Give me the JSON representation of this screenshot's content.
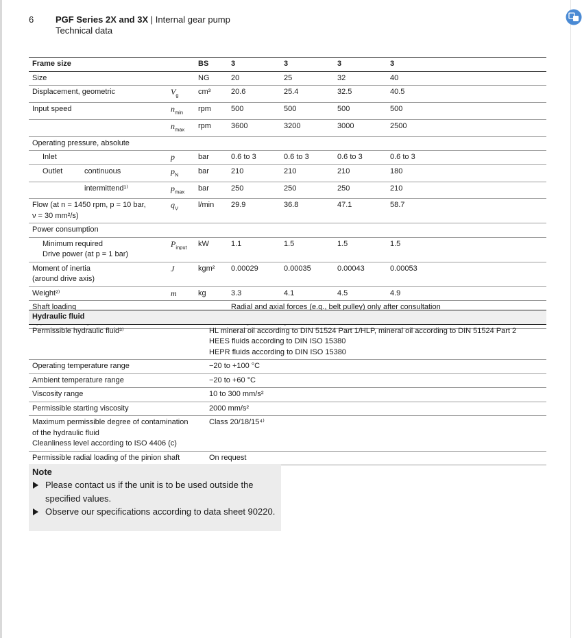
{
  "header": {
    "page_number": "6",
    "title": "PGF Series 2X and 3X",
    "title_suffix": "| Internal gear pump",
    "subtitle": "Technical data"
  },
  "technical_table": {
    "header": {
      "label": "Frame size",
      "unit": "BS",
      "values": [
        "3",
        "3",
        "3",
        "3"
      ]
    },
    "rows": [
      {
        "label": [
          "Size"
        ],
        "unit": "NG",
        "values": [
          "20",
          "25",
          "32",
          "40"
        ]
      },
      {
        "label": [
          "Displacement, geometric"
        ],
        "symbol": {
          "main": "V",
          "sub": "g"
        },
        "unit": "cm³",
        "values": [
          "20.6",
          "25.4",
          "32.5",
          "40.5"
        ]
      },
      {
        "label": [
          "Input speed"
        ],
        "symbol": {
          "main": "n",
          "sub": "min"
        },
        "unit": "rpm",
        "values": [
          "500",
          "500",
          "500",
          "500"
        ]
      },
      {
        "symbol": {
          "main": "n",
          "sub": "max"
        },
        "unit": "rpm",
        "values": [
          "3600",
          "3200",
          "3000",
          "2500"
        ]
      },
      {
        "label": [
          "Operating pressure, absolute"
        ]
      },
      {
        "label": [
          "Inlet"
        ],
        "symbol": {
          "main": "p"
        },
        "unit": "bar",
        "values": [
          "0.6 to 3",
          "0.6 to 3",
          "0.6 to 3",
          "0.6 to 3"
        ]
      },
      {
        "label": [
          "Outlet"
        ],
        "sublabel": "continuous",
        "symbol": {
          "main": "p",
          "sub": "N"
        },
        "unit": "bar",
        "values": [
          "210",
          "210",
          "210",
          "180"
        ]
      },
      {
        "sublabel": "intermittend¹⁾",
        "symbol": {
          "main": "p",
          "sub": "max"
        },
        "unit": "bar",
        "values": [
          "250",
          "250",
          "250",
          "210"
        ]
      },
      {
        "label": [
          "Flow (at n = 1450 rpm, p = 10 bar,",
          "ν = 30 mm²/s)"
        ],
        "symbol": {
          "main": "q",
          "sub": "V"
        },
        "unit": "l/min",
        "values": [
          "29.9",
          "36.8",
          "47.1",
          "58.7"
        ]
      },
      {
        "label": [
          "Power consumption"
        ]
      },
      {
        "label": [
          "Minimum required",
          "Drive power (at p = 1 bar)"
        ],
        "symbol": {
          "main": "P",
          "sub": "input"
        },
        "unit": "kW",
        "values": [
          "1.1",
          "1.5",
          "1.5",
          "1.5"
        ]
      },
      {
        "label": [
          "Moment of inertia",
          "(around drive axis)"
        ],
        "symbol": {
          "main": "J"
        },
        "unit": "kgm²",
        "values": [
          "0.00029",
          "0.00035",
          "0.00043",
          "0.00053"
        ]
      },
      {
        "label": [
          "Weight²⁾"
        ],
        "symbol": {
          "main": "m"
        },
        "unit": "kg",
        "values": [
          "3.3",
          "4.1",
          "4.5",
          "4.9"
        ]
      },
      {
        "label": [
          "Shaft loading"
        ],
        "note": "Radial and axial forces (e.g., belt pulley) only after consultation"
      },
      {
        "label": [
          "Type of mounting"
        ],
        "note": "Flange mounting"
      }
    ]
  },
  "fluid_table": {
    "header": "Hydraulic fluid",
    "rows": [
      {
        "label": [
          "Permissible hydraulic fluid³⁾"
        ],
        "value": [
          "HL mineral oil according to DIN 51524 Part 1/HLP, mineral oil according to DIN 51524 Part 2",
          "HEES fluids according to DIN ISO 15380",
          "HEPR fluids according to DIN ISO 15380"
        ]
      },
      {
        "label": [
          "Operating temperature range"
        ],
        "value": [
          "−20 to +100 °C"
        ]
      },
      {
        "label": [
          "Ambient temperature range"
        ],
        "value": [
          "−20 to +60 °C"
        ]
      },
      {
        "label": [
          "Viscosity range"
        ],
        "value": [
          "10 to 300 mm/s²"
        ]
      },
      {
        "label": [
          "Permissible starting viscosity"
        ],
        "value": [
          "2000 mm/s²"
        ]
      },
      {
        "label": [
          "Maximum permissible degree of contamination",
          "of the hydraulic fluid",
          "Cleanliness level according to ISO 4406 (c)"
        ],
        "value": [
          "Class 20/18/15⁴⁾"
        ]
      },
      {
        "label": [
          "Permissible radial loading of the pinion shaft"
        ],
        "value": [
          "On request"
        ]
      }
    ]
  },
  "note": {
    "title": "Note",
    "items": [
      "Please contact us if the unit is to be used outside the specified values.",
      "Observe our specifications according to data sheet 90220."
    ]
  }
}
